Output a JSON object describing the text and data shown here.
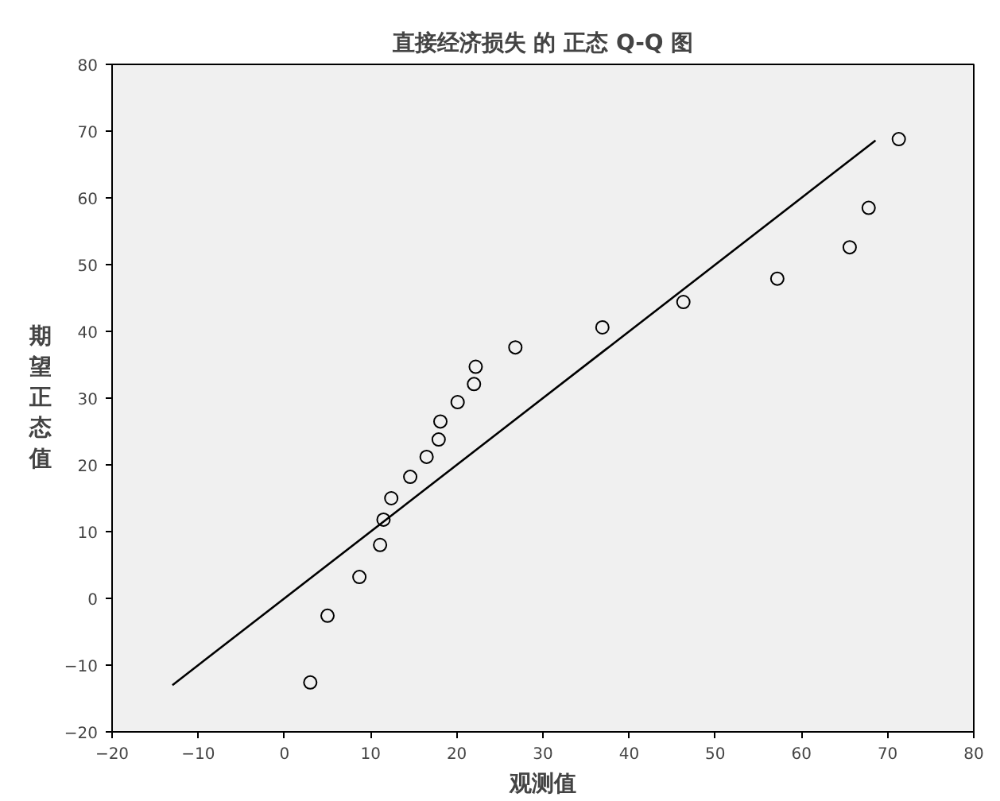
{
  "chart_data": {
    "type": "scatter",
    "title": "直接经济损失 的 正态 Q-Q 图",
    "xlabel": "观测值",
    "ylabel": "期望正态值",
    "xlim": [
      -20,
      80
    ],
    "ylim": [
      -20,
      80
    ],
    "xticks": [
      -20,
      -10,
      0,
      10,
      20,
      30,
      40,
      50,
      60,
      70,
      80
    ],
    "yticks": [
      -20,
      -10,
      0,
      10,
      20,
      30,
      40,
      50,
      60,
      70,
      80
    ],
    "grid": false,
    "series": [
      {
        "marker": "circle",
        "color": "#000000",
        "x": [
          3.0,
          5.0,
          8.7,
          11.1,
          11.5,
          12.4,
          14.6,
          16.5,
          17.9,
          18.1,
          20.1,
          22.0,
          22.2,
          26.8,
          36.9,
          46.3,
          57.2,
          65.6,
          67.8,
          71.3
        ],
        "values": [
          -12.6,
          -2.6,
          3.2,
          8.0,
          11.8,
          15.0,
          18.2,
          21.2,
          23.8,
          26.5,
          29.4,
          32.1,
          34.7,
          37.6,
          40.6,
          44.4,
          47.9,
          52.6,
          58.5,
          68.8
        ]
      },
      {
        "type": "line",
        "marker": "none",
        "color": "#000000",
        "x": [
          -13.0,
          68.6
        ],
        "values": [
          -13.0,
          68.6
        ]
      }
    ]
  }
}
